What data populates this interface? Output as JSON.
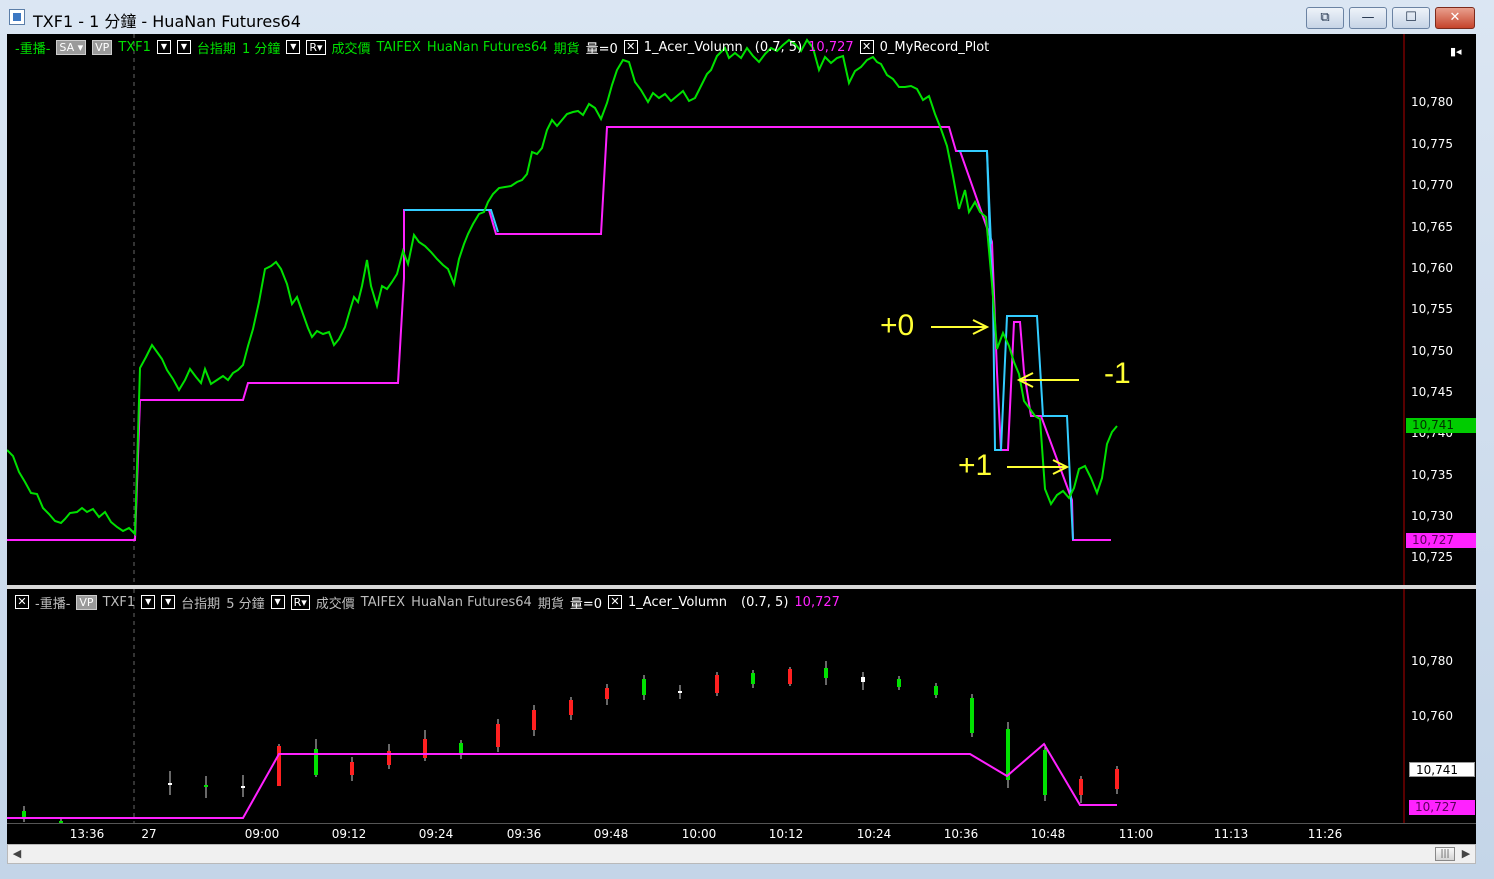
{
  "window": {
    "title": "TXF1 - 1 分鐘 - HuaNan Futures64",
    "buttons": {
      "restore_all": "⧉",
      "minimize": "—",
      "maximize": "☐",
      "close": "✕"
    }
  },
  "top_pane": {
    "header": {
      "mode": "-重播-",
      "sa": "SA",
      "vp": "VP",
      "symbol": "TXF1",
      "product": "台指期",
      "interval": "1 分鐘",
      "r_label": "R",
      "price_type": "成交價",
      "exchange": "TAIFEX",
      "broker": "HuaNan Futures64",
      "category": "期貨",
      "volume": "量=0",
      "indicator": "1_Acer_Volumn",
      "params": "(0.7,  5)",
      "value": "10,727",
      "indicator2": "0_MyRecord_Plot"
    },
    "price_axis": [
      "10,780",
      "10,775",
      "10,770",
      "10,765",
      "10,760",
      "10,755",
      "10,750",
      "10,745",
      "10,740",
      "10,735",
      "10,730",
      "10,725"
    ],
    "tag_green": "10,741",
    "tag_magenta": "10,727",
    "annotations": {
      "plus0": "+0",
      "minus1": "-1",
      "plus1": "+1"
    }
  },
  "bottom_pane": {
    "header": {
      "mode": "-重播-",
      "vp": "VP",
      "symbol": "TXF1",
      "product": "台指期",
      "interval": "5 分鐘",
      "r_label": "R",
      "price_type": "成交價",
      "exchange": "TAIFEX",
      "broker": "HuaNan Futures64",
      "category": "期貨",
      "volume": "量=0",
      "indicator": "1_Acer_Volumn",
      "params": "(0.7,  5)",
      "value": "10,727"
    },
    "price_axis": [
      "10,780",
      "10,760"
    ],
    "tag_white": "10,741",
    "tag_magenta": "10,727"
  },
  "time_axis": [
    "13:36",
    "27",
    "09:00",
    "09:12",
    "09:24",
    "09:36",
    "09:48",
    "10:00",
    "10:12",
    "10:24",
    "10:36",
    "10:48",
    "11:00",
    "11:13",
    "11:26"
  ],
  "colors": {
    "price_line": "#00e100",
    "indicator": "#ff22ff",
    "indicator_alt": "#33ccff",
    "up_candle": "#ff2020",
    "down_candle": "#00e100",
    "annotation": "#ffff33"
  }
}
